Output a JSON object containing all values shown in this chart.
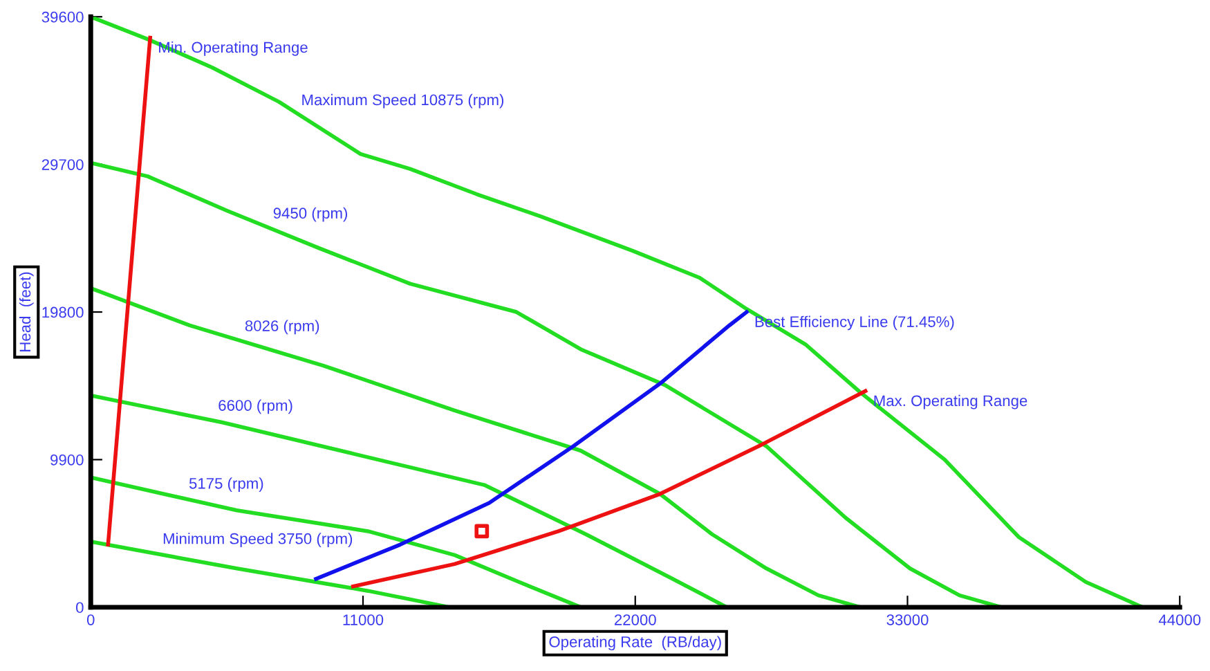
{
  "chart_data": {
    "type": "line",
    "xlabel": "Operating Rate  (RB/day)",
    "ylabel": "Head  (feet)",
    "xlim": [
      0,
      44000
    ],
    "ylim": [
      0,
      39600
    ],
    "xticks": [
      0,
      11000,
      22000,
      33000,
      44000
    ],
    "yticks": [
      0,
      9900,
      19800,
      29700,
      39600
    ],
    "grid": false,
    "legend": false,
    "marker": "none",
    "line_style": "solid",
    "series": [
      {
        "name": "Maximum Speed 10875 (rpm)",
        "color": "#22dd22",
        "x": [
          0,
          2300,
          4900,
          7600,
          10900,
          12900,
          15600,
          18200,
          21900,
          24600,
          26500,
          28900,
          31100,
          34500,
          37500,
          40200,
          42500
        ],
        "values": [
          39600,
          38100,
          36200,
          33900,
          30400,
          29400,
          27700,
          26200,
          23900,
          22100,
          20000,
          17600,
          14400,
          9900,
          4700,
          1700,
          0
        ]
      },
      {
        "name": "9450 (rpm)",
        "color": "#22dd22",
        "x": [
          0,
          2300,
          5500,
          9200,
          12900,
          17200,
          19800,
          23200,
          27300,
          30500,
          33100,
          35100,
          36800
        ],
        "values": [
          29800,
          28900,
          26600,
          24100,
          21700,
          19800,
          17300,
          14900,
          10800,
          6000,
          2600,
          800,
          0
        ]
      },
      {
        "name": "8026 (rpm)",
        "color": "#22dd22",
        "x": [
          0,
          4000,
          9400,
          14700,
          19800,
          23000,
          25100,
          27300,
          29400,
          31100
        ],
        "values": [
          21400,
          18900,
          16200,
          13200,
          10500,
          7600,
          4900,
          2600,
          800,
          0
        ]
      },
      {
        "name": "6600 (rpm)",
        "color": "#22dd22",
        "x": [
          0,
          5300,
          10600,
          15900,
          20000,
          23400,
          25700
        ],
        "values": [
          14200,
          12400,
          10300,
          8200,
          4900,
          2000,
          0
        ]
      },
      {
        "name": "5175 (rpm)",
        "color": "#22dd22",
        "x": [
          0,
          5900,
          11200,
          14700,
          17300,
          19800
        ],
        "values": [
          8700,
          6500,
          5100,
          3500,
          1700,
          0
        ]
      },
      {
        "name": "Minimum Speed 3750 (rpm)",
        "color": "#22dd22",
        "x": [
          0,
          5900,
          11200,
          14500
        ],
        "values": [
          4400,
          2600,
          1100,
          0
        ]
      },
      {
        "name": "Min. Operating Range",
        "color": "#ee1111",
        "x": [
          700,
          2400
        ],
        "values": [
          4200,
          38200
        ]
      },
      {
        "name": "Best Efficiency Line (71.45%)",
        "color": "#1111ee",
        "x": [
          9100,
          12500,
          16100,
          19500,
          23000,
          25800,
          26500
        ],
        "values": [
          1900,
          4200,
          7000,
          10800,
          15000,
          18900,
          19800
        ]
      },
      {
        "name": "Max. Operating Range",
        "color": "#ee1111",
        "x": [
          10600,
          14700,
          18900,
          23000,
          27100,
          31300
        ],
        "values": [
          1400,
          2900,
          5100,
          7600,
          10900,
          14500
        ]
      },
      {
        "type": "scatter",
        "marker": "square",
        "color": "#ee1111",
        "x": [
          15800
        ],
        "values": [
          5100
        ]
      }
    ]
  }
}
